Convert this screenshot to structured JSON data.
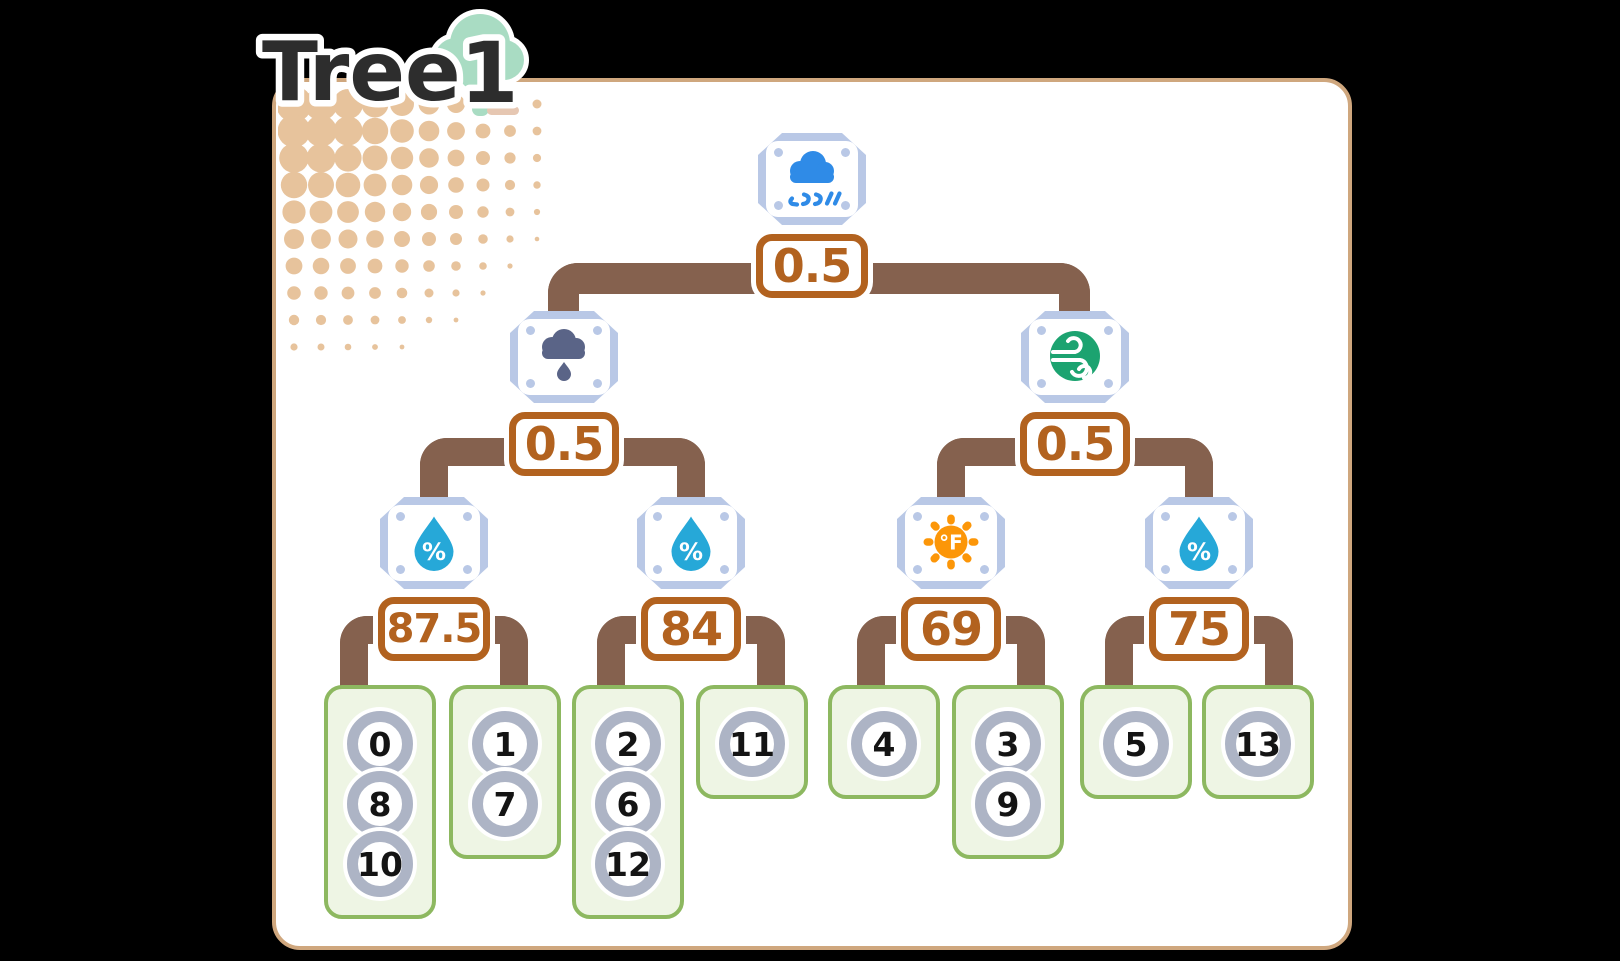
{
  "title": {
    "word": "Tree",
    "number": "1"
  },
  "nodes": {
    "root": {
      "feature": "rain",
      "threshold": "0.5"
    },
    "l2_left": {
      "feature": "rain-cloud",
      "threshold": "0.5"
    },
    "l2_right": {
      "feature": "wind",
      "threshold": "0.5"
    },
    "l3_1": {
      "feature": "humidity",
      "threshold": "87.5"
    },
    "l3_2": {
      "feature": "humidity",
      "threshold": "84"
    },
    "l3_3": {
      "feature": "temperature",
      "threshold": "69"
    },
    "l3_4": {
      "feature": "humidity",
      "threshold": "75"
    }
  },
  "leaves": [
    {
      "values": [
        "0",
        "8",
        "10"
      ]
    },
    {
      "values": [
        "1",
        "7"
      ]
    },
    {
      "values": [
        "2",
        "6",
        "12"
      ]
    },
    {
      "values": [
        "11"
      ]
    },
    {
      "values": [
        "4"
      ]
    },
    {
      "values": [
        "3",
        "9"
      ]
    },
    {
      "values": [
        "5"
      ]
    },
    {
      "values": [
        "13"
      ]
    }
  ],
  "icons": {
    "humidity_symbol": "%",
    "temperature_symbol": "°F"
  },
  "colors": {
    "background": "#000000",
    "card_border": "#CFA77E",
    "connector_brown": "#85614E",
    "threshold_orange": "#B2621F",
    "badge_blue": "#B9C8E6",
    "rain_blue": "#2F8BE7",
    "cloud_slate": "#5A6487",
    "wind_green": "#1CA370",
    "humidity_cyan": "#26A8D8",
    "sun_orange": "#FC9608",
    "leaf_fill": "#EEF5E4",
    "leaf_border": "#8DB860",
    "circle_ring": "#ADB4C5",
    "halftone_tan": "#E7C39C",
    "tree_mint": "#A9DCC3"
  }
}
